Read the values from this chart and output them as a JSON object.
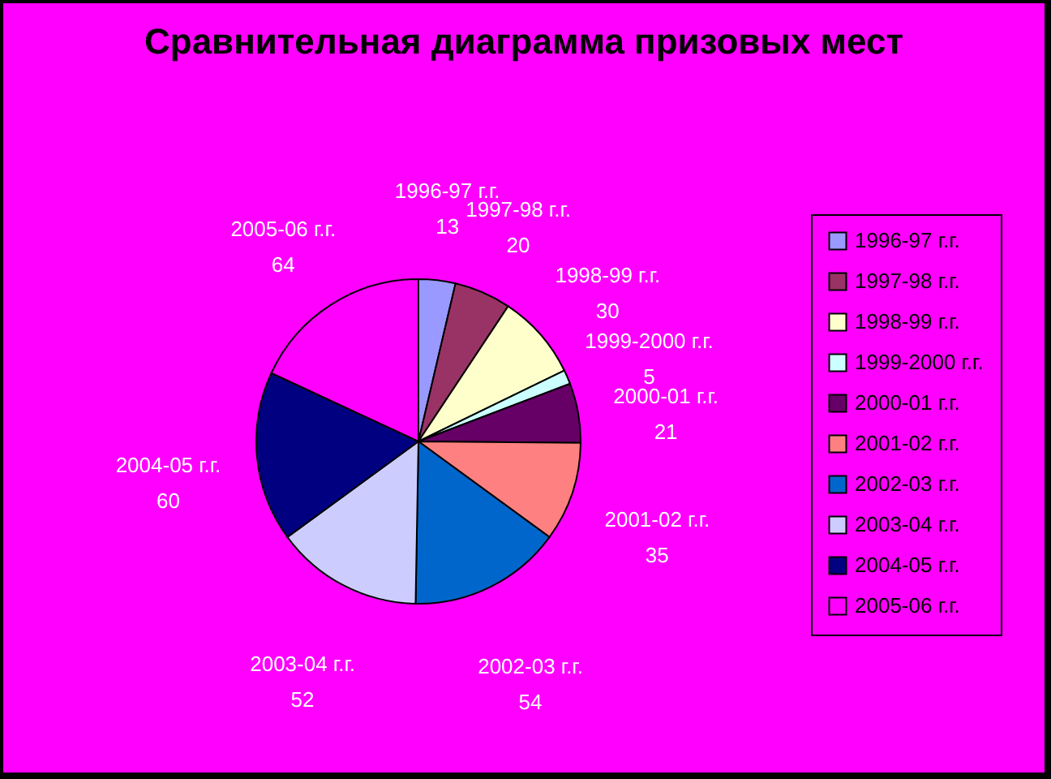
{
  "chart_data": {
    "type": "pie",
    "title": "Сравнительная диаграмма призовых мест",
    "categories": [
      "1996-97 г.г.",
      "1997-98 г.г.",
      "1998-99 г.г.",
      "1999-2000 г.г.",
      "2000-01 г.г.",
      "2001-02 г.г.",
      "2002-03 г.г.",
      "2003-04 г.г.",
      "2004-05 г.г.",
      "2005-06 г.г."
    ],
    "values": [
      13,
      20,
      30,
      5,
      21,
      35,
      54,
      52,
      60,
      64
    ],
    "colors": [
      "#9999ff",
      "#993366",
      "#ffffcc",
      "#ccffff",
      "#660066",
      "#ff8080",
      "#0066cc",
      "#ccccff",
      "#000080",
      "#ff00ff"
    ],
    "data_labels": true,
    "legend": "right"
  }
}
